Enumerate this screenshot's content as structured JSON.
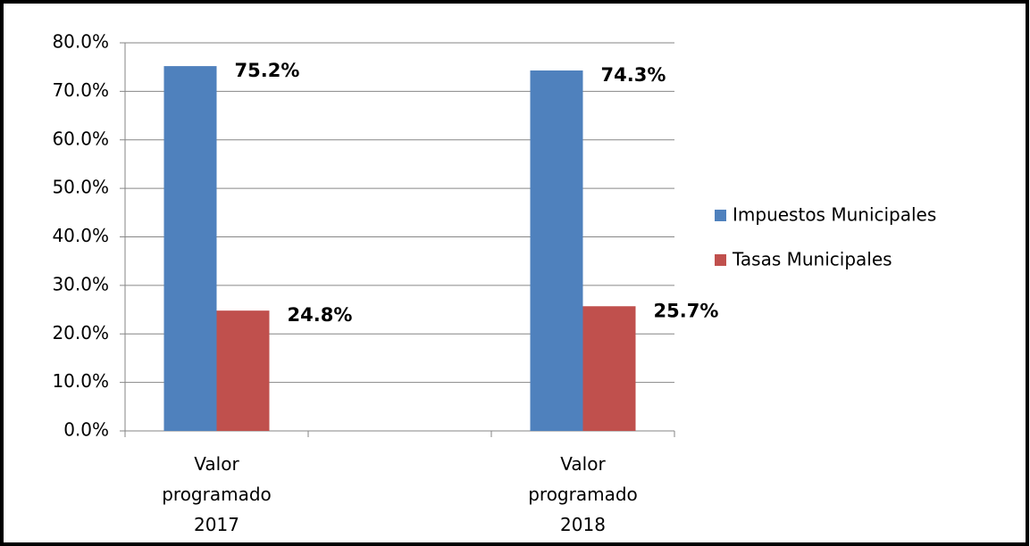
{
  "chart_data": {
    "type": "bar",
    "categories": [
      "Valor programado 2017",
      "Valor programado 2018"
    ],
    "series": [
      {
        "name": "Impuestos Municipales",
        "color": "#4f81bd",
        "values": [
          75.2,
          74.3
        ],
        "value_labels": [
          "75.2%",
          "74.3%"
        ]
      },
      {
        "name": "Tasas Municipales",
        "color": "#c0504d",
        "values": [
          24.8,
          25.7
        ],
        "value_labels": [
          "24.8%",
          "25.7%"
        ]
      }
    ],
    "ylim": [
      0,
      80
    ],
    "yticks": [
      {
        "value": 0,
        "label": "0.0%"
      },
      {
        "value": 10,
        "label": "10.0%"
      },
      {
        "value": 20,
        "label": "20.0%"
      },
      {
        "value": 30,
        "label": "30.0%"
      },
      {
        "value": 40,
        "label": "40.0%"
      },
      {
        "value": 50,
        "label": "50.0%"
      },
      {
        "value": 60,
        "label": "60.0%"
      },
      {
        "value": 70,
        "label": "70.0%"
      },
      {
        "value": 80,
        "label": "80.0%"
      }
    ],
    "grid": true,
    "legend": "right"
  }
}
